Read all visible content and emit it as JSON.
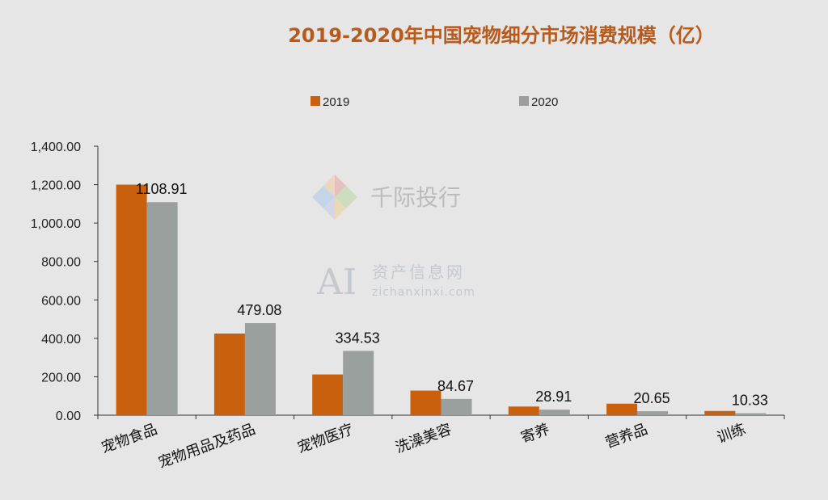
{
  "chart_data": {
    "type": "bar",
    "title": "2019-2020年中国宠物细分市场消费规模（亿）",
    "categories": [
      "宠物食品",
      "宠物用品及药品",
      "宠物医疗",
      "洗澡美容",
      "寄养",
      "营养品",
      "训练"
    ],
    "series": [
      {
        "name": "2019",
        "color": "#c8600e",
        "values": [
          1200,
          425,
          212,
          128,
          45,
          60,
          22
        ]
      },
      {
        "name": "2020",
        "color": "#9aa09e",
        "values": [
          1108.91,
          479.08,
          334.53,
          84.67,
          28.91,
          20.65,
          10.33
        ]
      }
    ],
    "data_labels": [
      "1108.91",
      "479.08",
      "334.53",
      "84.67",
      "28.91",
      "20.65",
      "10.33"
    ],
    "y_ticks": [
      "0.00",
      "200.00",
      "400.00",
      "600.00",
      "800.00",
      "1,000.00",
      "1,200.00",
      "1,400.00"
    ],
    "ylim": [
      0,
      1400
    ],
    "legend_position": "top",
    "grid": false
  },
  "watermarks": {
    "brand_text": "千际投行",
    "ai_text": "AI",
    "site_name": "资产信息网",
    "site_url": "zichanxinxi.com"
  }
}
